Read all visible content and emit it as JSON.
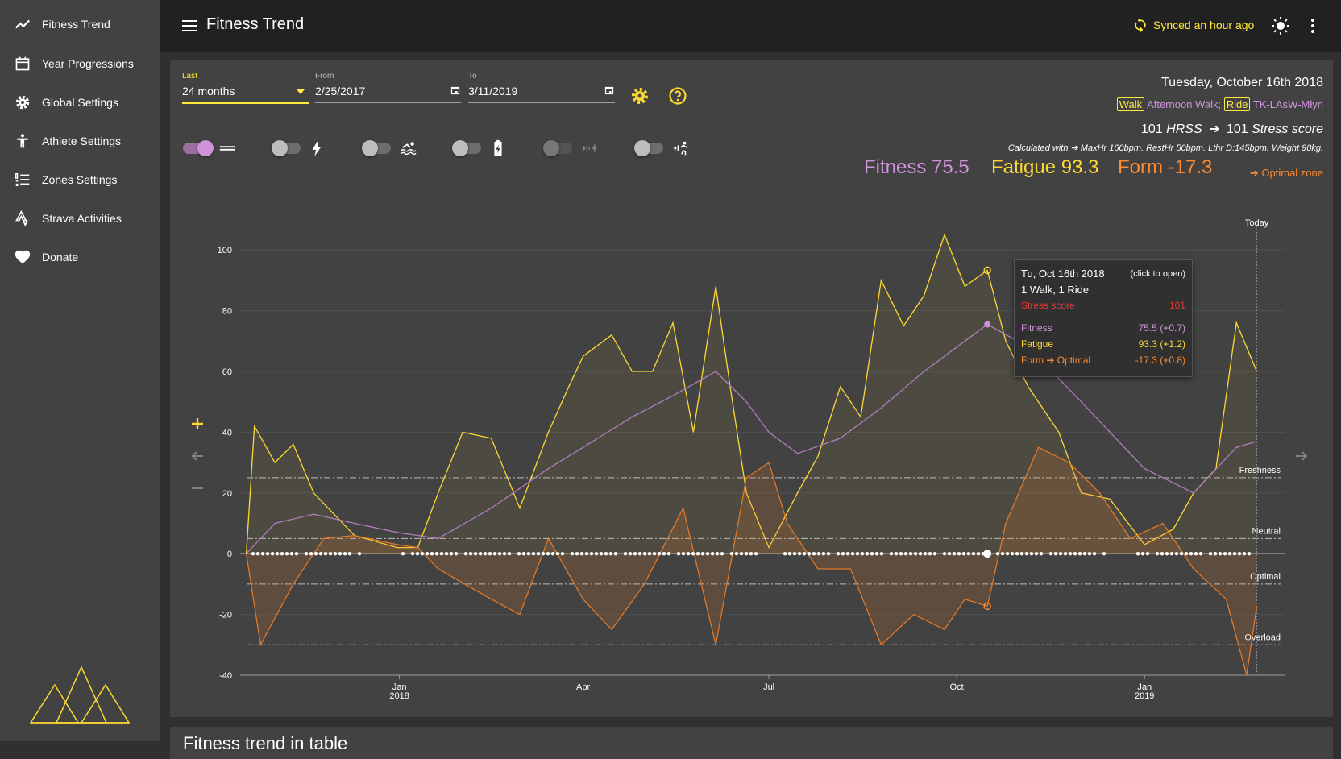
{
  "sidebar": {
    "items": [
      {
        "label": "Fitness Trend",
        "icon": "trending-up-icon"
      },
      {
        "label": "Year Progressions",
        "icon": "calendar-icon"
      },
      {
        "label": "Global Settings",
        "icon": "gear-icon"
      },
      {
        "label": "Athlete Settings",
        "icon": "athlete-icon"
      },
      {
        "label": "Zones Settings",
        "icon": "list-numbered-icon"
      },
      {
        "label": "Strava Activities",
        "icon": "strava-icon"
      },
      {
        "label": "Donate",
        "icon": "heart-icon"
      }
    ]
  },
  "header": {
    "title": "Fitness Trend",
    "sync_status": "Synced an hour ago"
  },
  "filters": {
    "period_label": "Last",
    "period_value": "24 months",
    "from_label": "From",
    "from_value": "2/25/2017",
    "to_label": "To",
    "to_value": "3/11/2019"
  },
  "toggles": [
    {
      "name": "training-zones",
      "on": true,
      "enabled": true
    },
    {
      "name": "power-meter",
      "on": false,
      "enabled": true
    },
    {
      "name": "swim",
      "on": false,
      "enabled": true
    },
    {
      "name": "heart-rate-fallback",
      "on": false,
      "enabled": true
    },
    {
      "name": "estimated-power",
      "on": false,
      "enabled": false
    },
    {
      "name": "estimated-running-power",
      "on": false,
      "enabled": true
    }
  ],
  "summary": {
    "date": "Tuesday, October 16th 2018",
    "activity1_type": "Walk",
    "activity1_name": "Afternoon Walk;",
    "activity2_type": "Ride",
    "activity2_name": "TK-LAsW-Młyn",
    "hrss_value": "101",
    "hrss_label": "HRSS",
    "stress_value": "101",
    "stress_label": "Stress score",
    "calculated_with": "Calculated with ➔ MaxHr 160bpm. RestHr 50bpm. Lthr D:145bpm. Weight 90kg.",
    "fitness": "Fitness 75.5",
    "fatigue": "Fatigue 93.3",
    "form": "Form -17.3",
    "optimal_zone": "➔ Optimal zone"
  },
  "tooltip": {
    "date": "Tu, Oct 16th 2018",
    "hint": "(click to open)",
    "activities": "1 Walk, 1 Ride",
    "stress_label": "Stress score",
    "stress_value": "101",
    "fitness_label": "Fitness",
    "fitness_value": "75.5 (+0.7)",
    "fatigue_label": "Fatigue",
    "fatigue_value": "93.3 (+1.2)",
    "form_label": "Form ➔ Optimal",
    "form_value": "-17.3 (+0.8)"
  },
  "bottom_card": {
    "title": "Fitness trend in table"
  },
  "colors": {
    "accent": "#ffeb3b",
    "fitness": "#ce93d8",
    "fatigue": "#fdd835",
    "form": "#ff8a30",
    "stress": "#e53935"
  },
  "chart_data": {
    "type": "line",
    "title": "",
    "ylim": [
      -40,
      108
    ],
    "y_ticks": [
      -40,
      -20,
      0,
      20,
      40,
      60,
      80,
      100
    ],
    "x_ticks": [
      {
        "label": "Jan",
        "sub": "2018",
        "date": "2018-01-01"
      },
      {
        "label": "Apr",
        "sub": "",
        "date": "2018-04-01"
      },
      {
        "label": "Jul",
        "sub": "",
        "date": "2018-07-01"
      },
      {
        "label": "Oct",
        "sub": "",
        "date": "2018-10-01"
      },
      {
        "label": "Jan",
        "sub": "2019",
        "date": "2019-01-01"
      }
    ],
    "xlim": [
      "2017-10-15",
      "2019-03-11"
    ],
    "today": {
      "label": "Today",
      "date": "2019-02-25"
    },
    "reference_lines": [
      {
        "label": "Freshness",
        "y": 25
      },
      {
        "label": "Neutral",
        "y": 5
      },
      {
        "label": "Optimal",
        "y": -10
      },
      {
        "label": "Overload",
        "y": -30
      }
    ],
    "series": [
      {
        "name": "Fatigue",
        "x": [
          "2017-10-18",
          "2017-10-22",
          "2017-11-01",
          "2017-11-10",
          "2017-11-20",
          "2017-12-10",
          "2017-12-31",
          "2018-01-10",
          "2018-01-20",
          "2018-02-01",
          "2018-02-15",
          "2018-03-01",
          "2018-03-15",
          "2018-03-25",
          "2018-04-01",
          "2018-04-15",
          "2018-04-25",
          "2018-05-05",
          "2018-05-15",
          "2018-05-25",
          "2018-06-05",
          "2018-06-12",
          "2018-06-20",
          "2018-07-01",
          "2018-07-15",
          "2018-07-25",
          "2018-08-05",
          "2018-08-15",
          "2018-08-25",
          "2018-09-05",
          "2018-09-15",
          "2018-09-25",
          "2018-10-05",
          "2018-10-16",
          "2018-10-25",
          "2018-11-05",
          "2018-11-20",
          "2018-12-01",
          "2018-12-15",
          "2019-01-01",
          "2019-01-15",
          "2019-01-25",
          "2019-02-05",
          "2019-02-15",
          "2019-02-25"
        ],
        "values": [
          0,
          42,
          30,
          36,
          20,
          6,
          2,
          2,
          20,
          40,
          38,
          15,
          40,
          55,
          65,
          72,
          60,
          60,
          76,
          40,
          88,
          55,
          20,
          2,
          20,
          32,
          55,
          45,
          90,
          75,
          85,
          105,
          88,
          93.3,
          70,
          55,
          40,
          20,
          18,
          3,
          8,
          20,
          28,
          76,
          60
        ]
      },
      {
        "name": "Fitness",
        "x": [
          "2017-10-18",
          "2017-11-01",
          "2017-11-20",
          "2017-12-10",
          "2017-12-31",
          "2018-01-20",
          "2018-02-15",
          "2018-03-15",
          "2018-04-01",
          "2018-04-25",
          "2018-05-15",
          "2018-06-05",
          "2018-06-20",
          "2018-07-01",
          "2018-07-15",
          "2018-08-05",
          "2018-08-25",
          "2018-09-15",
          "2018-10-05",
          "2018-10-16",
          "2018-11-05",
          "2018-12-01",
          "2019-01-01",
          "2019-01-25",
          "2019-02-15",
          "2019-02-25"
        ],
        "values": [
          0,
          10,
          13,
          10,
          7,
          5,
          15,
          28,
          35,
          45,
          52,
          60,
          50,
          40,
          33,
          38,
          48,
          60,
          70,
          75.5,
          68,
          50,
          28,
          20,
          35,
          37
        ]
      },
      {
        "name": "Form",
        "x": [
          "2017-10-18",
          "2017-10-25",
          "2017-11-10",
          "2017-11-25",
          "2017-12-10",
          "2017-12-31",
          "2018-01-10",
          "2018-01-20",
          "2018-02-15",
          "2018-03-01",
          "2018-03-15",
          "2018-04-01",
          "2018-04-15",
          "2018-05-01",
          "2018-05-20",
          "2018-06-05",
          "2018-06-20",
          "2018-07-01",
          "2018-07-10",
          "2018-07-25",
          "2018-08-10",
          "2018-08-25",
          "2018-09-10",
          "2018-09-25",
          "2018-10-05",
          "2018-10-16",
          "2018-10-25",
          "2018-11-10",
          "2018-11-25",
          "2018-12-10",
          "2018-12-25",
          "2019-01-10",
          "2019-01-25",
          "2019-02-10",
          "2019-02-20",
          "2019-02-25"
        ],
        "values": [
          0,
          -30,
          -10,
          5,
          6,
          3,
          2,
          -5,
          -15,
          -20,
          5,
          -15,
          -25,
          -10,
          15,
          -30,
          25,
          30,
          10,
          -5,
          -5,
          -30,
          -20,
          -25,
          -15,
          -17.3,
          10,
          35,
          30,
          20,
          5,
          10,
          -5,
          -15,
          -40,
          -17.3
        ]
      }
    ]
  }
}
